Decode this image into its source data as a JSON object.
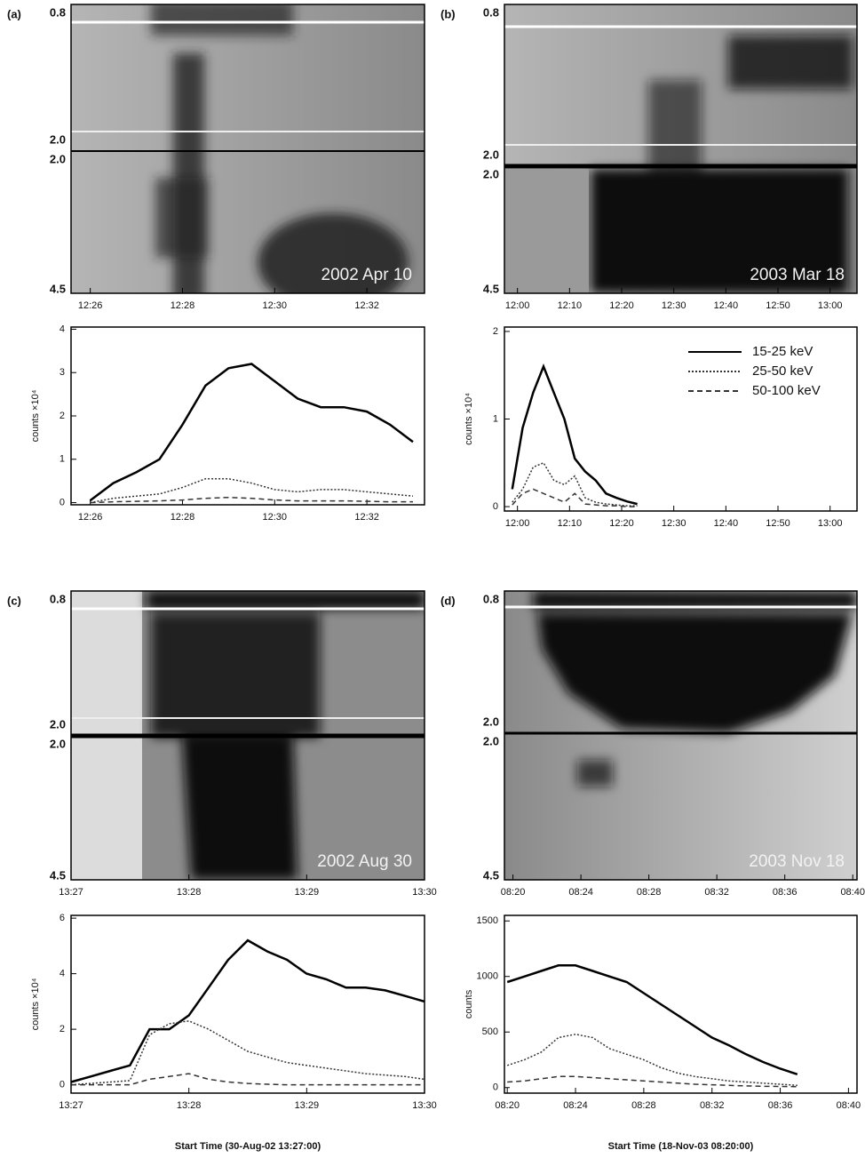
{
  "chart_data": [
    {
      "type": "spectrogram",
      "panel": "(a)",
      "date": "2002 Apr 10",
      "ylabels": [
        "0.8",
        "2.0",
        "2.0",
        "4.5"
      ],
      "xlim": [
        "12:25:35",
        "12:33:15"
      ],
      "xticks": [
        "12:26",
        "12:28",
        "12:30",
        "12:32"
      ]
    },
    {
      "type": "line",
      "ylabel": "counts ×10⁴",
      "xlim": [
        "12:25:35",
        "12:33:15"
      ],
      "xticks": [
        "12:26",
        "12:28",
        "12:30",
        "12:32"
      ],
      "ylim": [
        -0.05,
        4.05
      ],
      "yticks": [
        0,
        1,
        2,
        3,
        4
      ],
      "x": [
        "12:26:00",
        "12:26:30",
        "12:27:00",
        "12:27:30",
        "12:28:00",
        "12:28:30",
        "12:29:00",
        "12:29:30",
        "12:30:00",
        "12:30:30",
        "12:31:00",
        "12:31:30",
        "12:32:00",
        "12:32:30",
        "12:33:00"
      ],
      "series": [
        {
          "color": "#000000",
          "dash": "solid",
          "values": [
            0.05,
            0.45,
            0.7,
            1.0,
            1.8,
            2.7,
            3.1,
            3.2,
            2.8,
            2.4,
            2.2,
            2.2,
            2.1,
            1.8,
            1.4
          ]
        },
        {
          "color": "#333333",
          "dash": "dotted",
          "values": [
            0,
            0.1,
            0.15,
            0.2,
            0.35,
            0.55,
            0.55,
            0.45,
            0.3,
            0.25,
            0.3,
            0.3,
            0.25,
            0.2,
            0.15
          ]
        },
        {
          "color": "#333333",
          "dash": "dashed",
          "values": [
            0,
            0.02,
            0.03,
            0.04,
            0.06,
            0.1,
            0.12,
            0.1,
            0.06,
            0.04,
            0.04,
            0.04,
            0.03,
            0.02,
            0.02
          ]
        }
      ]
    },
    {
      "type": "spectrogram",
      "panel": "(b)",
      "date": "2003 Mar 18",
      "ylabels": [
        "0.8",
        "2.0",
        "2.0",
        "4.5"
      ],
      "xlim": [
        "11:57:30",
        "13:05:10"
      ],
      "xticks": [
        "12:00",
        "12:10",
        "12:20",
        "12:30",
        "12:40",
        "12:50",
        "13:00"
      ]
    },
    {
      "type": "line",
      "ylabel": "counts ×10⁴",
      "xlim": [
        "11:57:30",
        "13:05:10"
      ],
      "xticks": [
        "12:00",
        "12:10",
        "12:20",
        "12:30",
        "12:40",
        "12:50",
        "13:00"
      ],
      "ylim": [
        -0.05,
        2.05
      ],
      "yticks": [
        0,
        1,
        2
      ],
      "legend": "upper right",
      "x": [
        "11:59:00",
        "12:01:00",
        "12:03:00",
        "12:05:00",
        "12:07:00",
        "12:09:00",
        "12:11:00",
        "12:13:00",
        "12:15:00",
        "12:17:00",
        "12:19:00",
        "12:21:00",
        "12:23:00"
      ],
      "series": [
        {
          "name": "15-25 keV",
          "color": "#000000",
          "dash": "solid",
          "values": [
            0.2,
            0.9,
            1.3,
            1.6,
            1.3,
            1.0,
            0.55,
            0.4,
            0.3,
            0.15,
            0.1,
            0.06,
            0.03
          ]
        },
        {
          "name": "25-50 keV",
          "color": "#333333",
          "dash": "dotted",
          "values": [
            0.05,
            0.2,
            0.45,
            0.5,
            0.3,
            0.25,
            0.35,
            0.1,
            0.05,
            0.03,
            0.02,
            0.01,
            0.01
          ]
        },
        {
          "name": "50-100 keV",
          "color": "#333333",
          "dash": "dashed",
          "values": [
            0.02,
            0.15,
            0.2,
            0.15,
            0.1,
            0.05,
            0.15,
            0.03,
            0.02,
            0.01,
            0.01,
            0,
            0
          ]
        }
      ]
    },
    {
      "type": "spectrogram",
      "panel": "(c)",
      "date": "2002 Aug 30",
      "ylabels": [
        "0.8",
        "2.0",
        "2.0",
        "4.5"
      ],
      "xlim": [
        "13:27:00",
        "13:30:00"
      ],
      "xticks": [
        "13:27",
        "13:28",
        "13:29",
        "13:30"
      ]
    },
    {
      "type": "line",
      "ylabel": "counts ×10⁴",
      "xlabel": "Start Time (30-Aug-02 13:27:00)",
      "xlim": [
        "13:27:00",
        "13:30:00"
      ],
      "xticks": [
        "13:27",
        "13:28",
        "13:29",
        "13:30"
      ],
      "ylim": [
        -0.3,
        6.1
      ],
      "yticks": [
        0,
        2,
        4,
        6
      ],
      "x": [
        "13:27:00",
        "13:27:10",
        "13:27:20",
        "13:27:30",
        "13:27:40",
        "13:27:50",
        "13:28:00",
        "13:28:10",
        "13:28:20",
        "13:28:30",
        "13:28:40",
        "13:28:50",
        "13:29:00",
        "13:29:10",
        "13:29:20",
        "13:29:30",
        "13:29:40",
        "13:29:50",
        "13:30:00"
      ],
      "series": [
        {
          "color": "#000000",
          "dash": "solid",
          "values": [
            0.1,
            0.3,
            0.5,
            0.7,
            2.0,
            2.0,
            2.5,
            3.5,
            4.5,
            5.2,
            4.8,
            4.5,
            4.0,
            3.8,
            3.5,
            3.5,
            3.4,
            3.2,
            3.0
          ]
        },
        {
          "color": "#333333",
          "dash": "dotted",
          "values": [
            0,
            0.05,
            0.1,
            0.15,
            1.8,
            2.2,
            2.3,
            2.0,
            1.6,
            1.2,
            1.0,
            0.8,
            0.7,
            0.6,
            0.5,
            0.4,
            0.35,
            0.3,
            0.2
          ]
        },
        {
          "color": "#333333",
          "dash": "dashed",
          "values": [
            0,
            0,
            0,
            0,
            0.2,
            0.3,
            0.4,
            0.2,
            0.1,
            0.05,
            0.02,
            0,
            0,
            0,
            0,
            0,
            0,
            0,
            0
          ]
        }
      ]
    },
    {
      "type": "spectrogram",
      "panel": "(d)",
      "date": "2003 Nov 18",
      "ylabels": [
        "0.8",
        "2.0",
        "2.0",
        "4.5"
      ],
      "xlim": [
        "08:19:30",
        "08:40:15"
      ],
      "xticks": [
        "08:20",
        "08:24",
        "08:28",
        "08:32",
        "08:36",
        "08:40"
      ]
    },
    {
      "type": "line",
      "ylabel": "counts",
      "xlabel": "Start Time (18-Nov-03 08:20:00)",
      "xlim": [
        "08:19:50",
        "08:40:30"
      ],
      "xticks": [
        "08:20",
        "08:24",
        "08:28",
        "08:32",
        "08:36",
        "08:40"
      ],
      "ylim": [
        -50,
        1550
      ],
      "yticks": [
        0,
        500,
        1000,
        1500
      ],
      "x": [
        "08:20:00",
        "08:21:00",
        "08:22:00",
        "08:23:00",
        "08:24:00",
        "08:25:00",
        "08:26:00",
        "08:27:00",
        "08:28:00",
        "08:29:00",
        "08:30:00",
        "08:31:00",
        "08:32:00",
        "08:33:00",
        "08:34:00",
        "08:35:00",
        "08:36:00",
        "08:37:00"
      ],
      "series": [
        {
          "color": "#000000",
          "dash": "solid",
          "values": [
            950,
            1000,
            1050,
            1100,
            1100,
            1050,
            1000,
            950,
            850,
            750,
            650,
            550,
            450,
            380,
            300,
            230,
            170,
            120
          ]
        },
        {
          "color": "#333333",
          "dash": "dotted",
          "values": [
            200,
            250,
            320,
            450,
            480,
            450,
            350,
            300,
            250,
            180,
            130,
            100,
            80,
            60,
            50,
            40,
            30,
            20
          ]
        },
        {
          "color": "#333333",
          "dash": "dashed",
          "values": [
            50,
            60,
            80,
            100,
            100,
            90,
            80,
            70,
            60,
            50,
            40,
            30,
            25,
            20,
            15,
            12,
            10,
            8
          ]
        }
      ]
    }
  ]
}
